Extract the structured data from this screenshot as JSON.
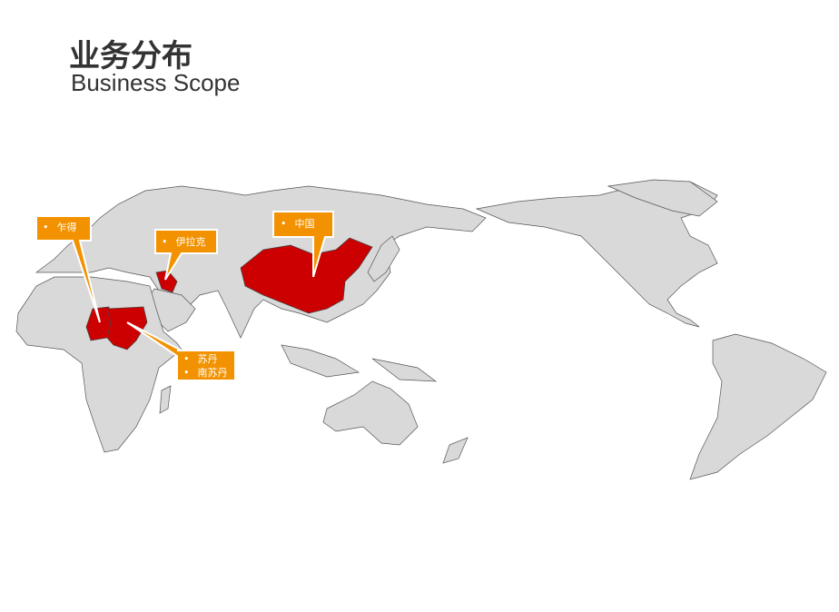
{
  "header": {
    "title": "业务分布",
    "subtitle": "Business Scope"
  },
  "map": {
    "land_color": "#d9d9d9",
    "highlight_color": "#cc0000",
    "callout_color": "#f39200",
    "callouts": [
      {
        "items": [
          "乍得"
        ]
      },
      {
        "items": [
          "伊拉克"
        ]
      },
      {
        "items": [
          "中国"
        ]
      },
      {
        "items": [
          "苏丹",
          "南苏丹"
        ]
      }
    ]
  }
}
